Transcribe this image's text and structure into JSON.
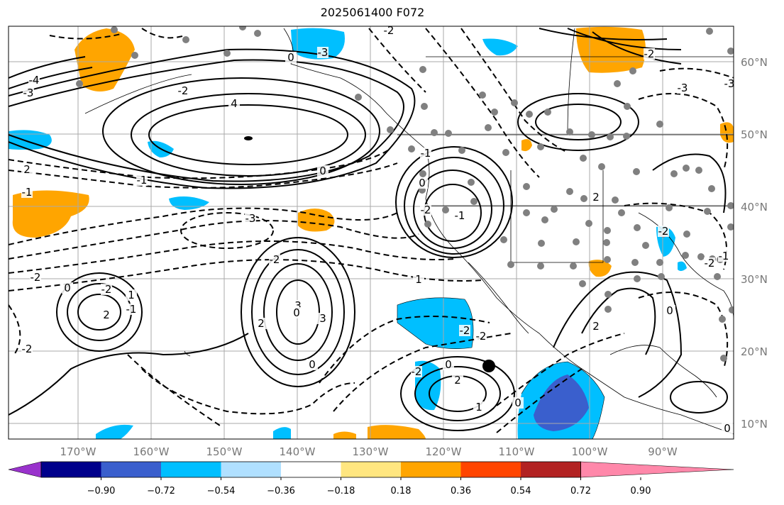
{
  "title": "2025061400 F072",
  "map": {
    "lon_ticks": [
      "170°W",
      "160°W",
      "150°W",
      "140°W",
      "130°W",
      "120°W",
      "110°W",
      "100°W",
      "90°W"
    ],
    "lat_ticks": [
      "60°N",
      "50°N",
      "40°N",
      "30°N",
      "20°N",
      "10°N"
    ],
    "contour_labels": [
      "-3",
      "-4",
      "-3",
      "-2",
      "0",
      "4",
      "2",
      "-1",
      "0",
      "-2",
      "-1",
      "-3",
      "-2",
      "0",
      "-2",
      "3",
      "0",
      "-1",
      "-2",
      "2",
      "1",
      "0",
      "2",
      "3",
      "1",
      "-2",
      "-2",
      "-2",
      "0",
      "2",
      "1",
      "0",
      "-2",
      "-1",
      "-2",
      "-2",
      "0",
      "2",
      "2",
      "-1",
      "0",
      "-1",
      "-2",
      "-3",
      "-3",
      "-2",
      "0"
    ]
  },
  "colorbar": {
    "tick_labels": [
      "−0.90",
      "−0.72",
      "−0.54",
      "−0.36",
      "−0.18",
      "0.18",
      "0.36",
      "0.54",
      "0.72",
      "0.90"
    ],
    "colors": [
      "#9932cc",
      "#00008b",
      "#3a5fcd",
      "#00bfff",
      "#b0e0ff",
      "#ffffff",
      "#ffe680",
      "#ffa500",
      "#ff4500",
      "#b22222",
      "#ff88aa"
    ]
  },
  "markers": {
    "storm_symbol": "black-dot"
  }
}
